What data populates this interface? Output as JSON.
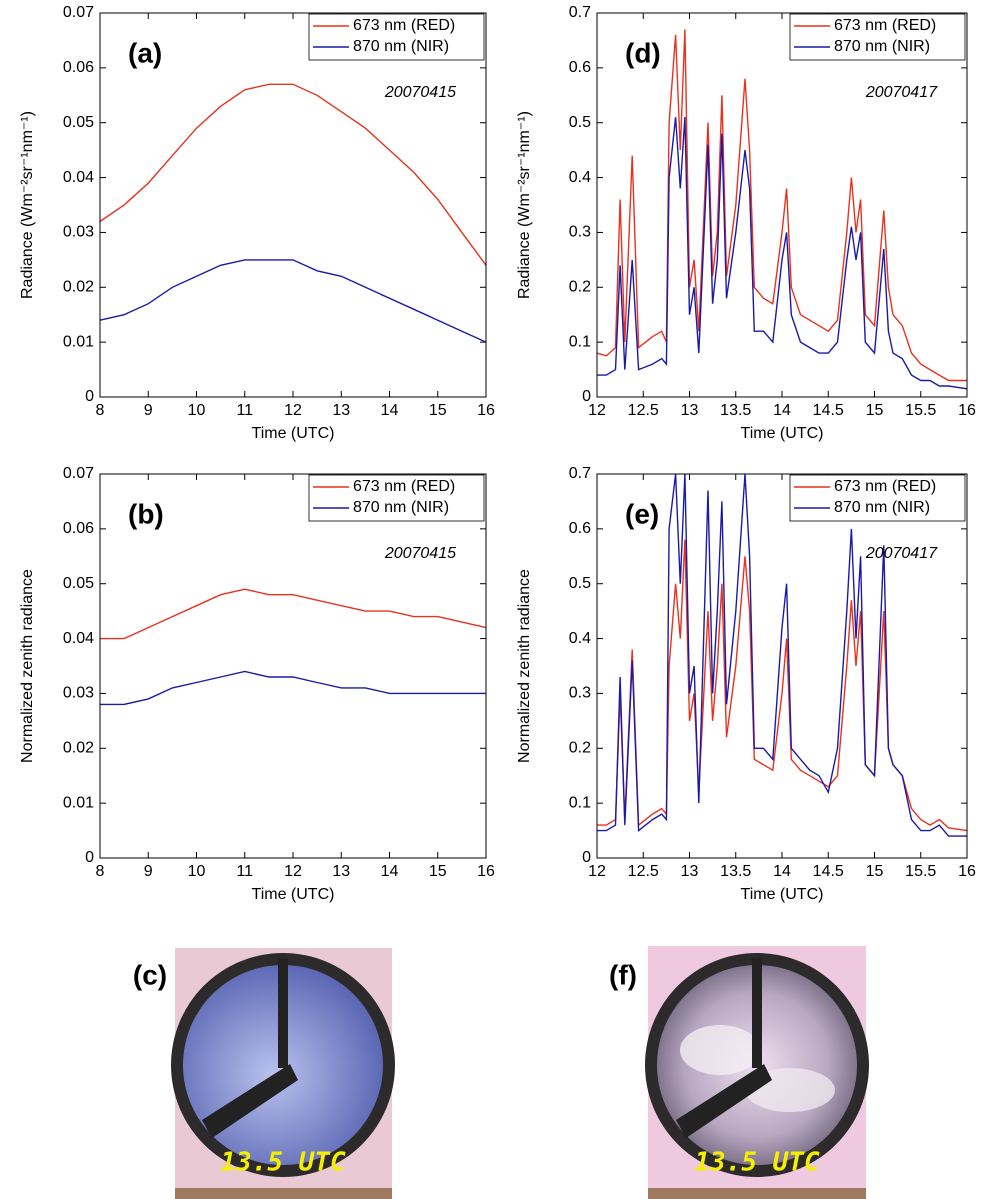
{
  "chart_data": [
    {
      "type": "line",
      "panel": "(a)",
      "annotation": "20070415",
      "xlabel": "Time (UTC)",
      "ylabel": "Radiance (Wm⁻²sr⁻¹nm⁻¹)",
      "x": [
        8,
        8.5,
        9,
        9.5,
        10,
        10.5,
        11,
        11.5,
        12,
        12.5,
        13,
        13.5,
        14,
        14.5,
        15,
        15.5,
        16
      ],
      "series": [
        {
          "name": "673 nm (RED)",
          "color": "#e8321e",
          "values": [
            0.032,
            0.035,
            0.039,
            0.044,
            0.049,
            0.053,
            0.056,
            0.057,
            0.057,
            0.055,
            0.052,
            0.049,
            0.045,
            0.041,
            0.036,
            0.03,
            0.024
          ]
        },
        {
          "name": "870 nm (NIR)",
          "color": "#1a1aa8",
          "values": [
            0.014,
            0.015,
            0.017,
            0.02,
            0.022,
            0.024,
            0.025,
            0.025,
            0.025,
            0.023,
            0.022,
            0.02,
            0.018,
            0.016,
            0.014,
            0.012,
            0.01
          ]
        }
      ],
      "xlim": [
        8,
        16
      ],
      "xticks": [
        8,
        9,
        10,
        11,
        12,
        13,
        14,
        15,
        16
      ],
      "ylim": [
        0,
        0.07
      ],
      "yticks": [
        0,
        0.01,
        0.02,
        0.03,
        0.04,
        0.05,
        0.06,
        0.07
      ],
      "legend": "upper right",
      "grid": false
    },
    {
      "type": "line",
      "panel": "(b)",
      "annotation": "20070415",
      "xlabel": "Time (UTC)",
      "ylabel": "Normalized zenith radiance",
      "x": [
        8,
        8.5,
        9,
        9.5,
        10,
        10.5,
        11,
        11.5,
        12,
        12.5,
        13,
        13.5,
        14,
        14.5,
        15,
        15.5,
        16
      ],
      "series": [
        {
          "name": "673 nm (RED)",
          "color": "#e8321e",
          "values": [
            0.04,
            0.04,
            0.042,
            0.044,
            0.046,
            0.048,
            0.049,
            0.048,
            0.048,
            0.047,
            0.046,
            0.045,
            0.045,
            0.044,
            0.044,
            0.043,
            0.042
          ]
        },
        {
          "name": "870 nm (NIR)",
          "color": "#1a1aa8",
          "values": [
            0.028,
            0.028,
            0.029,
            0.031,
            0.032,
            0.033,
            0.034,
            0.033,
            0.033,
            0.032,
            0.031,
            0.031,
            0.03,
            0.03,
            0.03,
            0.03,
            0.03
          ]
        }
      ],
      "xlim": [
        8,
        16
      ],
      "xticks": [
        8,
        9,
        10,
        11,
        12,
        13,
        14,
        15,
        16
      ],
      "ylim": [
        0,
        0.07
      ],
      "yticks": [
        0,
        0.01,
        0.02,
        0.03,
        0.04,
        0.05,
        0.06,
        0.07
      ],
      "legend": "upper right",
      "grid": false
    },
    {
      "type": "line",
      "panel": "(d)",
      "annotation": "20070417",
      "xlabel": "Time (UTC)",
      "ylabel": "Radiance (Wm⁻²sr⁻¹nm⁻¹)",
      "x": [
        12,
        12.1,
        12.2,
        12.25,
        12.3,
        12.38,
        12.45,
        12.6,
        12.7,
        12.75,
        12.78,
        12.85,
        12.9,
        12.95,
        13.0,
        13.05,
        13.1,
        13.2,
        13.25,
        13.3,
        13.35,
        13.4,
        13.5,
        13.6,
        13.65,
        13.7,
        13.8,
        13.9,
        14.0,
        14.05,
        14.1,
        14.2,
        14.3,
        14.4,
        14.5,
        14.6,
        14.7,
        14.75,
        14.8,
        14.85,
        14.9,
        15.0,
        15.1,
        15.15,
        15.2,
        15.3,
        15.4,
        15.5,
        15.6,
        15.7,
        15.8,
        16
      ],
      "series": [
        {
          "name": "673 nm (RED)",
          "color": "#e8321e",
          "values": [
            0.08,
            0.075,
            0.09,
            0.36,
            0.1,
            0.44,
            0.09,
            0.11,
            0.12,
            0.1,
            0.5,
            0.66,
            0.45,
            0.67,
            0.2,
            0.25,
            0.12,
            0.5,
            0.22,
            0.3,
            0.55,
            0.22,
            0.35,
            0.58,
            0.45,
            0.2,
            0.18,
            0.17,
            0.3,
            0.38,
            0.2,
            0.15,
            0.14,
            0.13,
            0.12,
            0.14,
            0.3,
            0.4,
            0.3,
            0.36,
            0.15,
            0.13,
            0.34,
            0.2,
            0.15,
            0.13,
            0.08,
            0.06,
            0.05,
            0.04,
            0.03,
            0.03
          ]
        },
        {
          "name": "870 nm (NIR)",
          "color": "#1a1aa8",
          "values": [
            0.04,
            0.04,
            0.05,
            0.24,
            0.05,
            0.25,
            0.05,
            0.06,
            0.07,
            0.06,
            0.4,
            0.51,
            0.38,
            0.51,
            0.15,
            0.2,
            0.08,
            0.46,
            0.17,
            0.25,
            0.48,
            0.18,
            0.3,
            0.45,
            0.38,
            0.12,
            0.12,
            0.1,
            0.25,
            0.3,
            0.15,
            0.1,
            0.09,
            0.08,
            0.08,
            0.1,
            0.25,
            0.31,
            0.25,
            0.3,
            0.1,
            0.08,
            0.27,
            0.12,
            0.08,
            0.07,
            0.04,
            0.03,
            0.03,
            0.02,
            0.02,
            0.015
          ]
        }
      ],
      "xlim": [
        12,
        16
      ],
      "xticks": [
        12,
        12.5,
        13,
        13.5,
        14,
        14.5,
        15,
        15.5,
        16
      ],
      "ylim": [
        0,
        0.7
      ],
      "yticks": [
        0,
        0.1,
        0.2,
        0.3,
        0.4,
        0.5,
        0.6,
        0.7
      ],
      "legend": "upper right",
      "grid": false
    },
    {
      "type": "line",
      "panel": "(e)",
      "annotation": "20070417",
      "xlabel": "Time (UTC)",
      "ylabel": "Normalized zenith radiance",
      "x": [
        12,
        12.1,
        12.2,
        12.25,
        12.3,
        12.38,
        12.45,
        12.6,
        12.7,
        12.75,
        12.78,
        12.85,
        12.9,
        12.95,
        13.0,
        13.05,
        13.1,
        13.2,
        13.25,
        13.3,
        13.35,
        13.4,
        13.5,
        13.6,
        13.65,
        13.7,
        13.8,
        13.9,
        14.0,
        14.05,
        14.1,
        14.2,
        14.3,
        14.4,
        14.5,
        14.6,
        14.7,
        14.75,
        14.8,
        14.85,
        14.9,
        15.0,
        15.1,
        15.15,
        15.2,
        15.3,
        15.4,
        15.5,
        15.6,
        15.7,
        15.8,
        16
      ],
      "series": [
        {
          "name": "673 nm (RED)",
          "color": "#e8321e",
          "values": [
            0.06,
            0.06,
            0.07,
            0.3,
            0.07,
            0.38,
            0.06,
            0.08,
            0.09,
            0.08,
            0.35,
            0.5,
            0.4,
            0.58,
            0.25,
            0.3,
            0.12,
            0.45,
            0.25,
            0.35,
            0.5,
            0.22,
            0.35,
            0.55,
            0.45,
            0.18,
            0.17,
            0.16,
            0.3,
            0.4,
            0.18,
            0.16,
            0.15,
            0.14,
            0.13,
            0.15,
            0.35,
            0.47,
            0.35,
            0.45,
            0.17,
            0.15,
            0.45,
            0.2,
            0.17,
            0.15,
            0.09,
            0.07,
            0.06,
            0.07,
            0.055,
            0.05
          ]
        },
        {
          "name": "870 nm (NIR)",
          "color": "#1a1aa8",
          "values": [
            0.05,
            0.05,
            0.06,
            0.33,
            0.06,
            0.36,
            0.05,
            0.07,
            0.08,
            0.07,
            0.6,
            0.7,
            0.5,
            0.7,
            0.3,
            0.35,
            0.1,
            0.67,
            0.3,
            0.45,
            0.65,
            0.28,
            0.45,
            0.7,
            0.55,
            0.2,
            0.2,
            0.18,
            0.42,
            0.5,
            0.2,
            0.18,
            0.16,
            0.15,
            0.12,
            0.2,
            0.45,
            0.6,
            0.4,
            0.55,
            0.17,
            0.15,
            0.57,
            0.2,
            0.17,
            0.15,
            0.07,
            0.05,
            0.05,
            0.06,
            0.04,
            0.04
          ]
        }
      ],
      "xlim": [
        12,
        16
      ],
      "xticks": [
        12,
        12.5,
        13,
        13.5,
        14,
        14.5,
        15,
        15.5,
        16
      ],
      "ylim": [
        0,
        0.7
      ],
      "yticks": [
        0,
        0.1,
        0.2,
        0.3,
        0.4,
        0.5,
        0.6,
        0.7
      ],
      "legend": "upper right",
      "grid": false
    }
  ],
  "photos": [
    {
      "panel": "(c)",
      "caption": "13.5 UTC"
    },
    {
      "panel": "(f)",
      "caption": "13.5 UTC"
    }
  ]
}
